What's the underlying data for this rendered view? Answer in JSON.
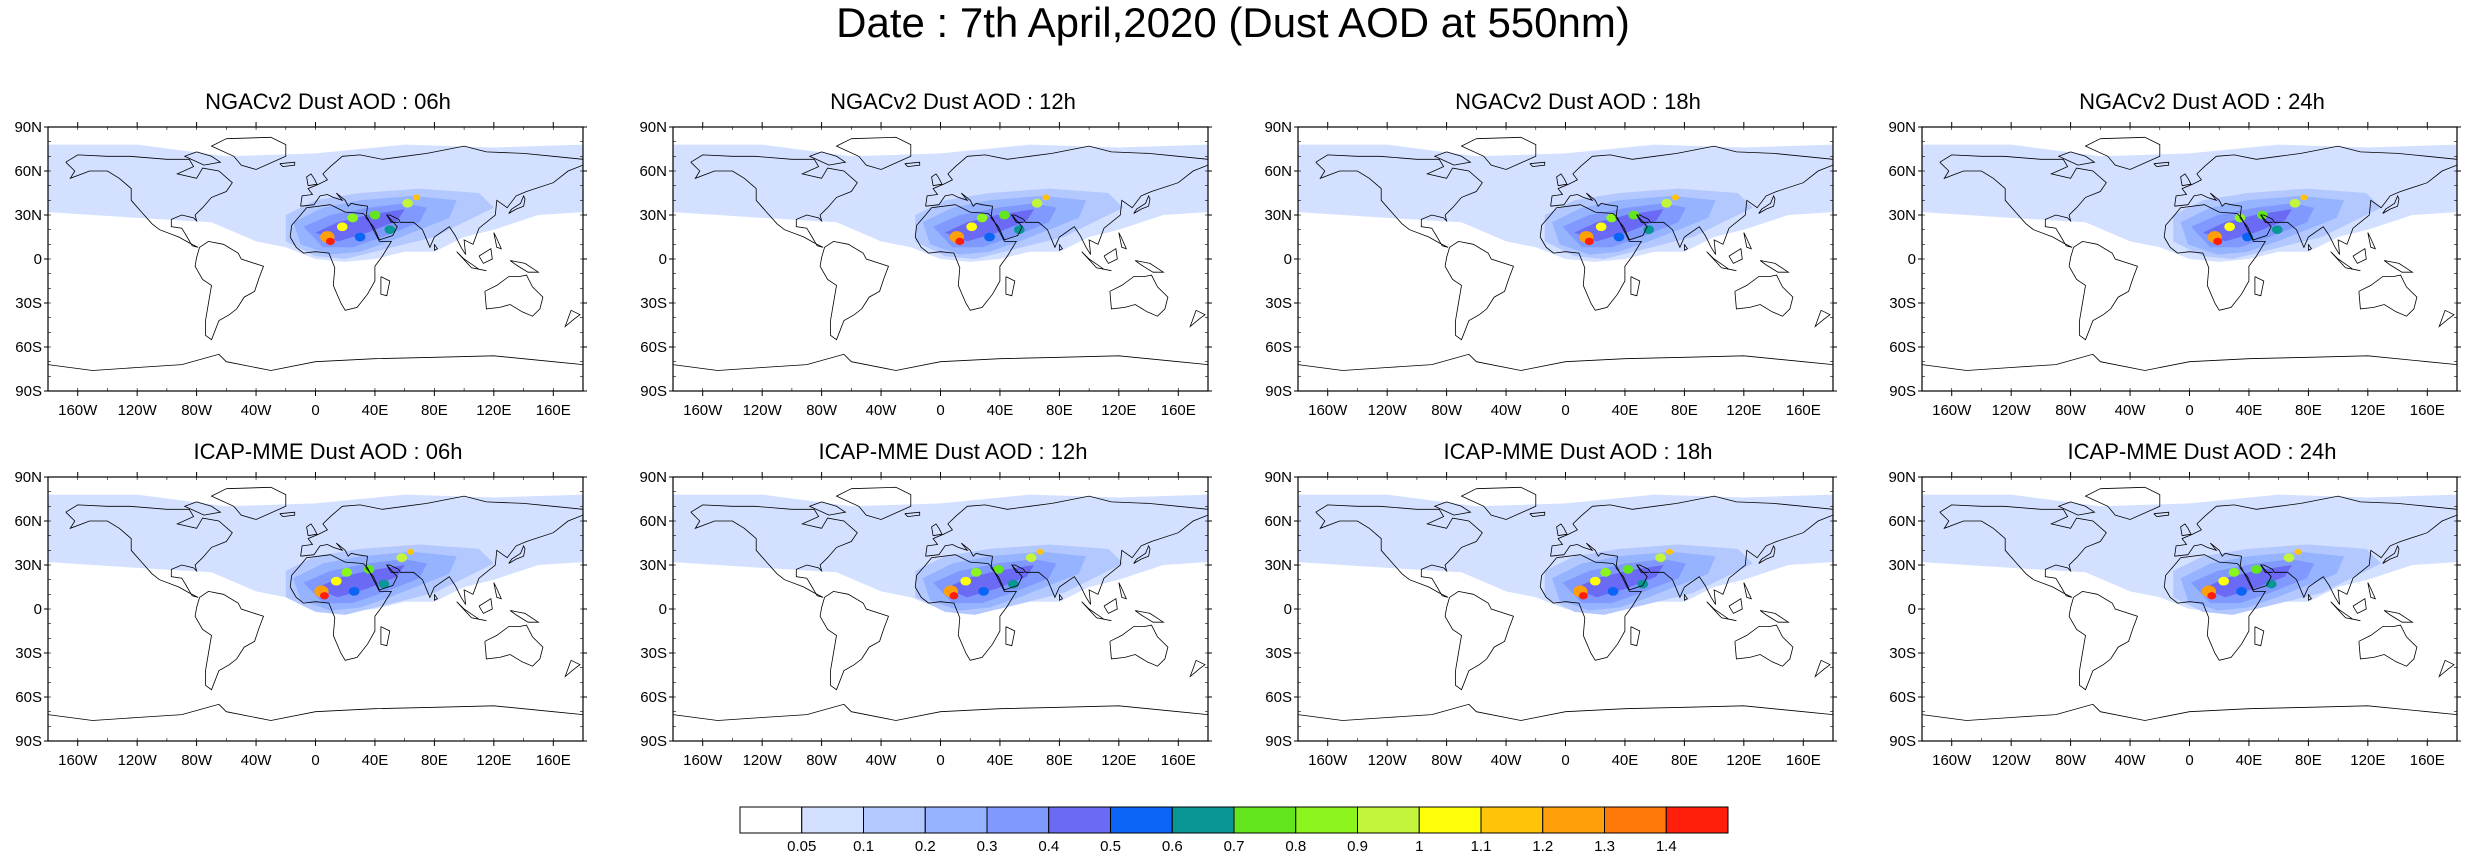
{
  "page": {
    "title": "Date : 7th April,2020 (Dust AOD at 550nm)"
  },
  "axes": {
    "lat_labels": [
      "90N",
      "60N",
      "30N",
      "0",
      "30S",
      "60S",
      "90S"
    ],
    "lon_labels": [
      "160W",
      "120W",
      "80W",
      "40W",
      "0",
      "40E",
      "80E",
      "120E",
      "160E"
    ]
  },
  "panels": [
    {
      "title": "NGACv2 Dust AOD : 06h",
      "model": "NGACv2",
      "hour": "06h"
    },
    {
      "title": "NGACv2 Dust AOD : 12h",
      "model": "NGACv2",
      "hour": "12h"
    },
    {
      "title": "NGACv2 Dust AOD : 18h",
      "model": "NGACv2",
      "hour": "18h"
    },
    {
      "title": "NGACv2 Dust AOD : 24h",
      "model": "NGACv2",
      "hour": "24h"
    },
    {
      "title": "ICAP-MME Dust AOD : 06h",
      "model": "ICAP-MME",
      "hour": "06h"
    },
    {
      "title": "ICAP-MME Dust AOD : 12h",
      "model": "ICAP-MME",
      "hour": "12h"
    },
    {
      "title": "ICAP-MME Dust AOD : 18h",
      "model": "ICAP-MME",
      "hour": "18h"
    },
    {
      "title": "ICAP-MME Dust AOD : 24h",
      "model": "ICAP-MME",
      "hour": "24h"
    }
  ],
  "colorbar": {
    "labels": [
      "0.05",
      "0.1",
      "0.2",
      "0.3",
      "0.4",
      "0.5",
      "0.6",
      "0.7",
      "0.8",
      "0.9",
      "1",
      "1.1",
      "1.2",
      "1.3",
      "1.4"
    ],
    "colors": [
      "#ffffff",
      "#d4e0ff",
      "#b3c8ff",
      "#96b3ff",
      "#8099ff",
      "#6a6af5",
      "#0a64f5",
      "#0a9696",
      "#64e61e",
      "#8cf51e",
      "#c3f53c",
      "#ffff0a",
      "#ffc30a",
      "#ffa00a",
      "#ff780a",
      "#ff1e0a"
    ]
  }
}
